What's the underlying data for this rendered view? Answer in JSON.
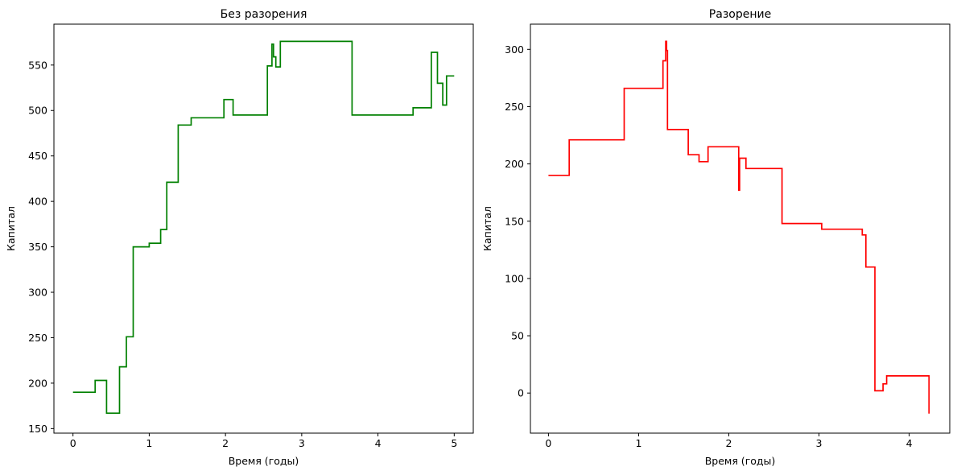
{
  "chart_data": [
    {
      "type": "line",
      "step": "post",
      "title": "Без разорения",
      "xlabel": "Время (годы)",
      "ylabel": "Капитал",
      "xlim": [
        -0.25,
        5.25
      ],
      "ylim": [
        145,
        595
      ],
      "xticks": [
        0,
        1,
        2,
        3,
        4,
        5
      ],
      "yticks": [
        150,
        200,
        250,
        300,
        350,
        400,
        450,
        500,
        550
      ],
      "grid": false,
      "color": "#008000",
      "series": [
        {
          "x": [
            0,
            0.29,
            0.44,
            0.61,
            0.7,
            0.79,
            1.0,
            1.15,
            1.23,
            1.38,
            1.55,
            1.98,
            2.1,
            2.55,
            2.61,
            2.63,
            2.66,
            2.72,
            3.66,
            4.46,
            4.7,
            4.78,
            4.85,
            4.9,
            5.0
          ],
          "y": [
            190,
            203,
            167,
            218,
            251,
            350,
            354,
            369,
            421,
            484,
            492,
            512,
            495,
            549,
            573,
            559,
            548,
            576,
            495,
            503,
            564,
            530,
            506,
            538,
            538
          ]
        }
      ]
    },
    {
      "type": "line",
      "step": "post",
      "title": "Разорение",
      "xlabel": "Время (годы)",
      "ylabel": "Капитал",
      "xlim": [
        -0.2,
        4.45
      ],
      "ylim": [
        -35,
        322
      ],
      "xticks": [
        0,
        1,
        2,
        3,
        4
      ],
      "yticks": [
        0,
        50,
        100,
        150,
        200,
        250,
        300
      ],
      "grid": false,
      "color": "#ff0000",
      "series": [
        {
          "x": [
            0,
            0.23,
            0.84,
            1.27,
            1.3,
            1.31,
            1.32,
            1.55,
            1.67,
            1.77,
            2.11,
            2.12,
            2.19,
            2.59,
            3.03,
            3.48,
            3.52,
            3.62,
            3.71,
            3.75,
            4.22
          ],
          "y": [
            190,
            221,
            266,
            290,
            307,
            299,
            230,
            208,
            202,
            215,
            177,
            205,
            196,
            148,
            143,
            138,
            110,
            2,
            8,
            15,
            -18
          ]
        }
      ]
    }
  ]
}
